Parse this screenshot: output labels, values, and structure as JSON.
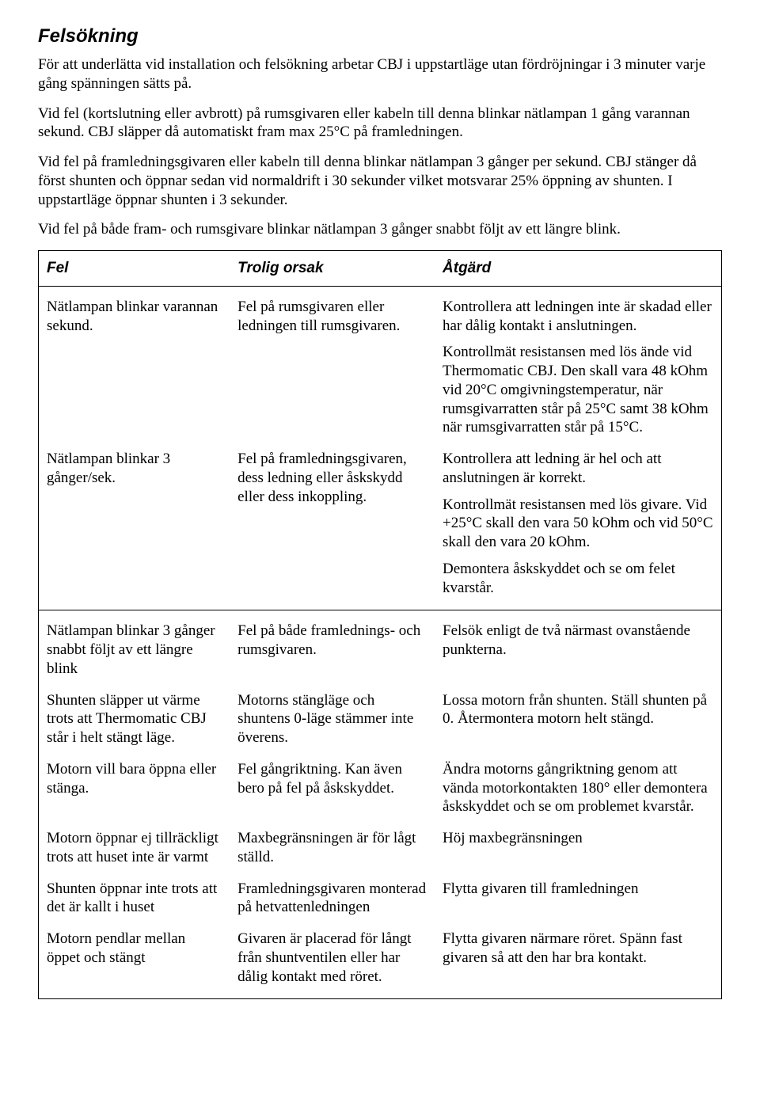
{
  "title": "Felsökning",
  "intro": {
    "p1": "För att underlätta vid installation och felsökning arbetar CBJ i uppstartläge utan fördröjningar i 3 minuter varje gång spänningen sätts på.",
    "p2": "Vid fel (kortslutning eller avbrott) på rumsgivaren eller kabeln till denna blinkar nätlampan 1 gång varannan sekund. CBJ släpper då automatiskt fram max 25°C på framledningen.",
    "p3": "Vid fel på framledningsgivaren eller kabeln till denna blinkar nätlampan 3 gånger per sekund. CBJ stänger då först shunten och öppnar sedan vid normaldrift i 30 sekunder vilket motsvarar 25% öppning av shunten. I uppstartläge öppnar shunten i 3 sekunder.",
    "p4": "Vid fel på både fram- och rumsgivare blinkar nätlampan 3 gånger snabbt följt av ett längre blink."
  },
  "headers": {
    "fel": "Fel",
    "orsak": "Trolig orsak",
    "atg": "Åtgärd"
  },
  "rows": [
    {
      "fel": "Nätlampan blinkar varannan sekund.",
      "orsak": "Fel på rumsgivaren eller ledningen till rumsgivaren.",
      "atg1": "Kontrollera att ledningen inte är skadad eller har dålig kontakt i anslutningen.",
      "atg2": "Kontrollmät resistansen med lös ände vid Thermomatic CBJ. Den skall vara 48 kOhm vid 20°C omgivningstemperatur, när rumsgivarratten står på 25°C samt 38 kOhm när rumsgivarratten står på 15°C."
    },
    {
      "fel": "Nätlampan blinkar 3 gånger/sek.",
      "orsak": "Fel på framledningsgivaren, dess ledning eller åskskydd eller dess inkoppling.",
      "atg1": "Kontrollera att ledning är hel och att anslutningen är korrekt.",
      "atg2": "Kontrollmät resistansen med lös givare. Vid +25°C skall den vara 50 kOhm och vid 50°C skall den vara 20 kOhm.",
      "atg3": "Demontera åskskyddet och se om felet kvarstår."
    },
    {
      "fel": "Nätlampan blinkar 3 gånger snabbt följt av ett längre blink",
      "orsak": "Fel på både framlednings- och rumsgivaren.",
      "atg": "Felsök enligt de två närmast ovanstående punkterna."
    },
    {
      "fel": "Shunten släpper ut värme trots att Thermomatic CBJ står i helt stängt läge.",
      "orsak": "Motorns stängläge och shuntens 0-läge stämmer inte överens.",
      "atg": "Lossa motorn från shunten. Ställ shunten på 0. Återmontera motorn helt stängd."
    },
    {
      "fel": "Motorn vill bara öppna eller stänga.",
      "orsak": "Fel gångriktning. Kan även bero på fel på åskskyddet.",
      "atg": "Ändra motorns gångriktning genom att vända motorkontakten 180° eller demontera åskskyddet och se om problemet kvarstår."
    },
    {
      "fel": "Motorn öppnar ej tillräckligt trots att huset inte är varmt",
      "orsak": "Maxbegränsningen är för lågt ställd.",
      "atg": "Höj maxbegränsningen"
    },
    {
      "fel": "Shunten öppnar inte trots att det är kallt i huset",
      "orsak": "Framledningsgivaren monterad på hetvattenledningen",
      "atg": "Flytta givaren till framledningen"
    },
    {
      "fel": "Motorn pendlar mellan öppet och stängt",
      "orsak": "Givaren är placerad för långt från shuntventilen eller har dålig kontakt med röret.",
      "atg": "Flytta givaren närmare röret. Spänn fast givaren så att den har bra kontakt."
    }
  ]
}
